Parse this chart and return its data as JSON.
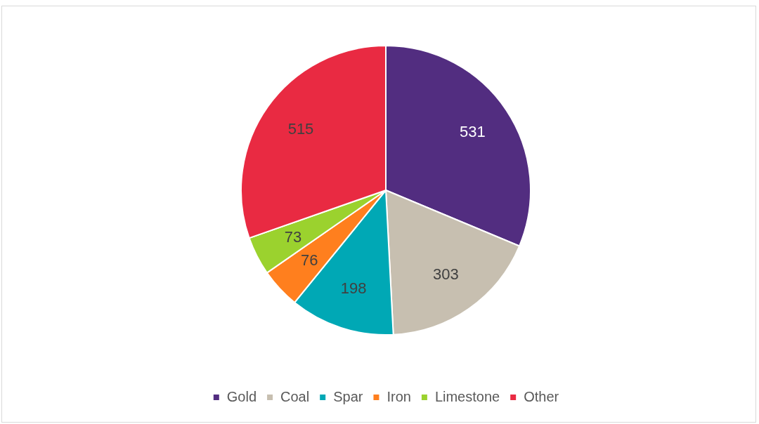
{
  "chart_data": {
    "type": "pie",
    "categories": [
      "Gold",
      "Coal",
      "Spar",
      "Iron",
      "Limestone",
      "Other"
    ],
    "values": [
      531,
      303,
      198,
      76,
      73,
      515
    ],
    "colors": [
      "#522d80",
      "#c7bfb0",
      "#00a8b5",
      "#ff7f1e",
      "#9bd22e",
      "#e92a42"
    ],
    "data_labels": true,
    "legend": "bottom"
  }
}
